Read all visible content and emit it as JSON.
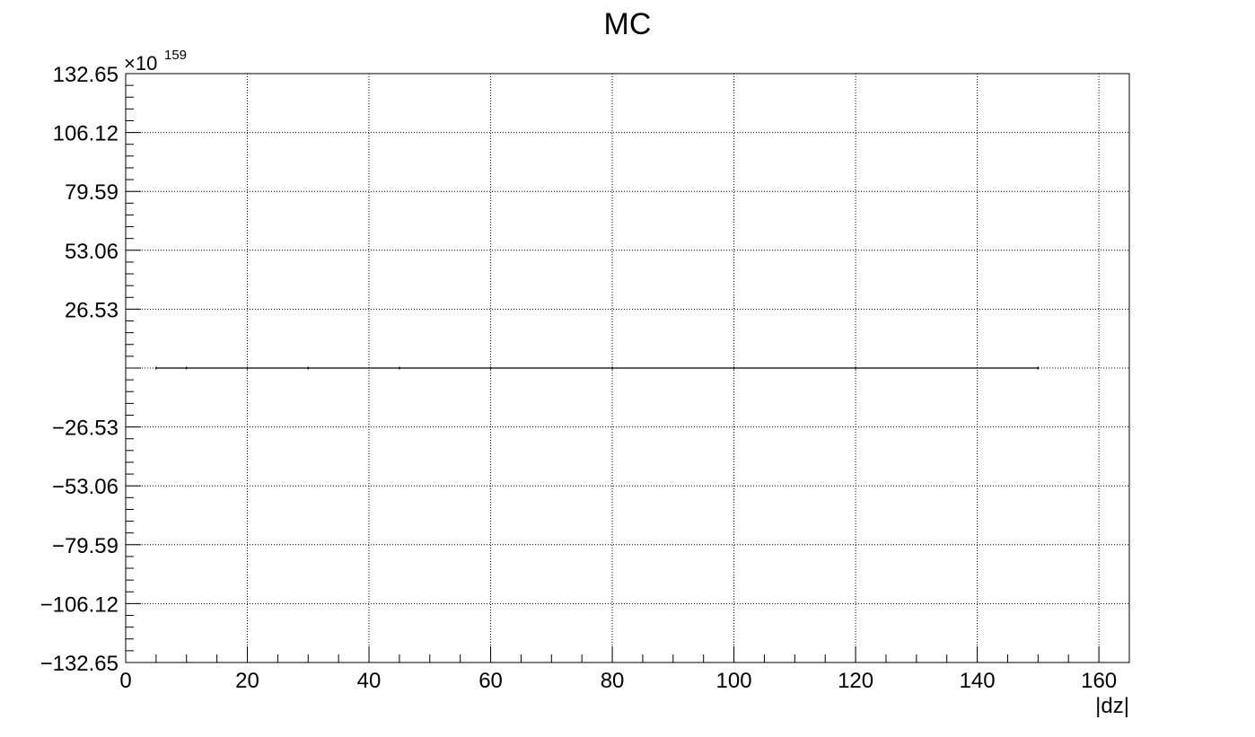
{
  "chart_data": {
    "type": "line",
    "title": "MC",
    "xlabel": "|dz|",
    "ylabel": "",
    "y_multiplier": "×10",
    "y_exponent": "159",
    "xlim": [
      0,
      165
    ],
    "ylim": [
      -132.65,
      132.65
    ],
    "x_ticks": [
      0,
      20,
      40,
      60,
      80,
      100,
      120,
      140,
      160
    ],
    "x_tick_labels": [
      "0",
      "20",
      "40",
      "60",
      "80",
      "100",
      "120",
      "140",
      "160"
    ],
    "y_ticks": [
      132.65,
      106.12,
      79.59,
      53.06,
      26.53,
      -26.53,
      -53.06,
      -79.59,
      -106.12,
      -132.65
    ],
    "y_tick_labels": [
      "132.65",
      "106.12",
      "79.59",
      "53.06",
      "26.53",
      "−26.53",
      "−53.06",
      "−79.59",
      "−106.12",
      "−132.65"
    ],
    "grid": true,
    "series": [
      {
        "x": [
          5,
          10,
          20,
          30,
          45,
          60,
          80,
          100,
          120,
          150
        ],
        "values": [
          0,
          0,
          0,
          0,
          0,
          0,
          0,
          0,
          0,
          0
        ]
      }
    ]
  }
}
